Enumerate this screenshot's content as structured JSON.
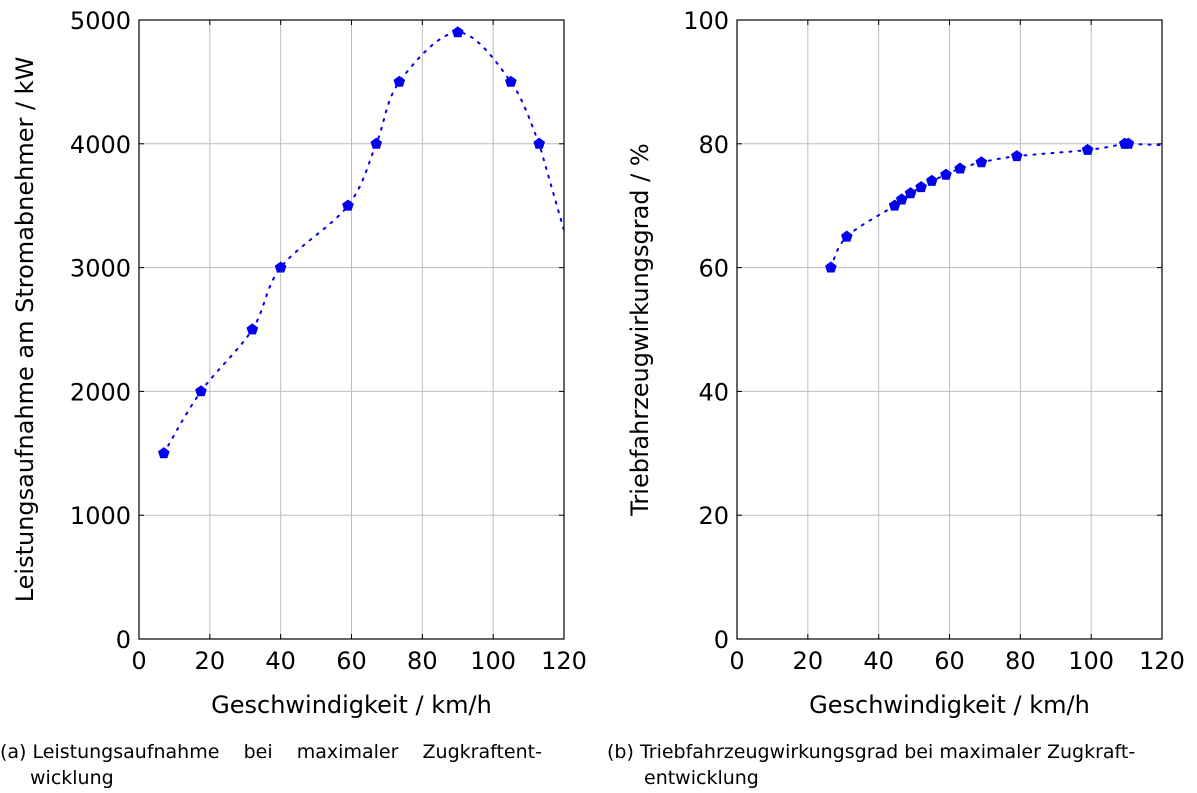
{
  "chart_data": [
    {
      "type": "scatter",
      "xlabel": "Geschwindigkeit / km/h",
      "ylabel": "Leistungsaufnahme am Stromabnehmer / kW",
      "xlim": [
        0,
        120
      ],
      "ylim": [
        0,
        5000
      ],
      "xticks": [
        0,
        20,
        40,
        60,
        80,
        100,
        120
      ],
      "yticks": [
        0,
        1000,
        2000,
        3000,
        4000,
        5000
      ],
      "grid": true,
      "marker_color": "#0000ee",
      "line_style": "dotted",
      "series": [
        {
          "x": [
            7,
            17.5,
            32,
            40,
            59,
            67,
            73.5,
            90,
            105,
            113
          ],
          "y": [
            1500,
            2000,
            2500,
            3000,
            3500,
            4000,
            4500,
            4900,
            4500,
            4000
          ]
        }
      ],
      "caption_label": "(a)",
      "caption_line1": "Leistungsaufnahme    bei    maximaler    Zugkraftent-",
      "caption_line2": "wicklung"
    },
    {
      "type": "scatter",
      "xlabel": "Geschwindigkeit / km/h",
      "ylabel": "Triebfahrzeugwirkungsgrad / %",
      "xlim": [
        0,
        120
      ],
      "ylim": [
        0,
        100
      ],
      "xticks": [
        0,
        20,
        40,
        60,
        80,
        100,
        120
      ],
      "yticks": [
        0,
        20,
        40,
        60,
        80,
        100
      ],
      "grid": true,
      "marker_color": "#0000ee",
      "line_style": "dotted",
      "series": [
        {
          "x": [
            26.5,
            31,
            44.5,
            46.5,
            49,
            52,
            55,
            59,
            63,
            69,
            79,
            99,
            109.5,
            110.5
          ],
          "y": [
            60,
            65,
            70,
            71,
            72,
            73,
            74,
            75,
            76,
            77,
            78,
            79,
            80,
            80
          ]
        }
      ],
      "caption_label": "(b)",
      "caption_line1": "Triebfahrzeugwirkungsgrad bei maximaler Zugkraft-",
      "caption_line2": "entwicklung"
    }
  ]
}
